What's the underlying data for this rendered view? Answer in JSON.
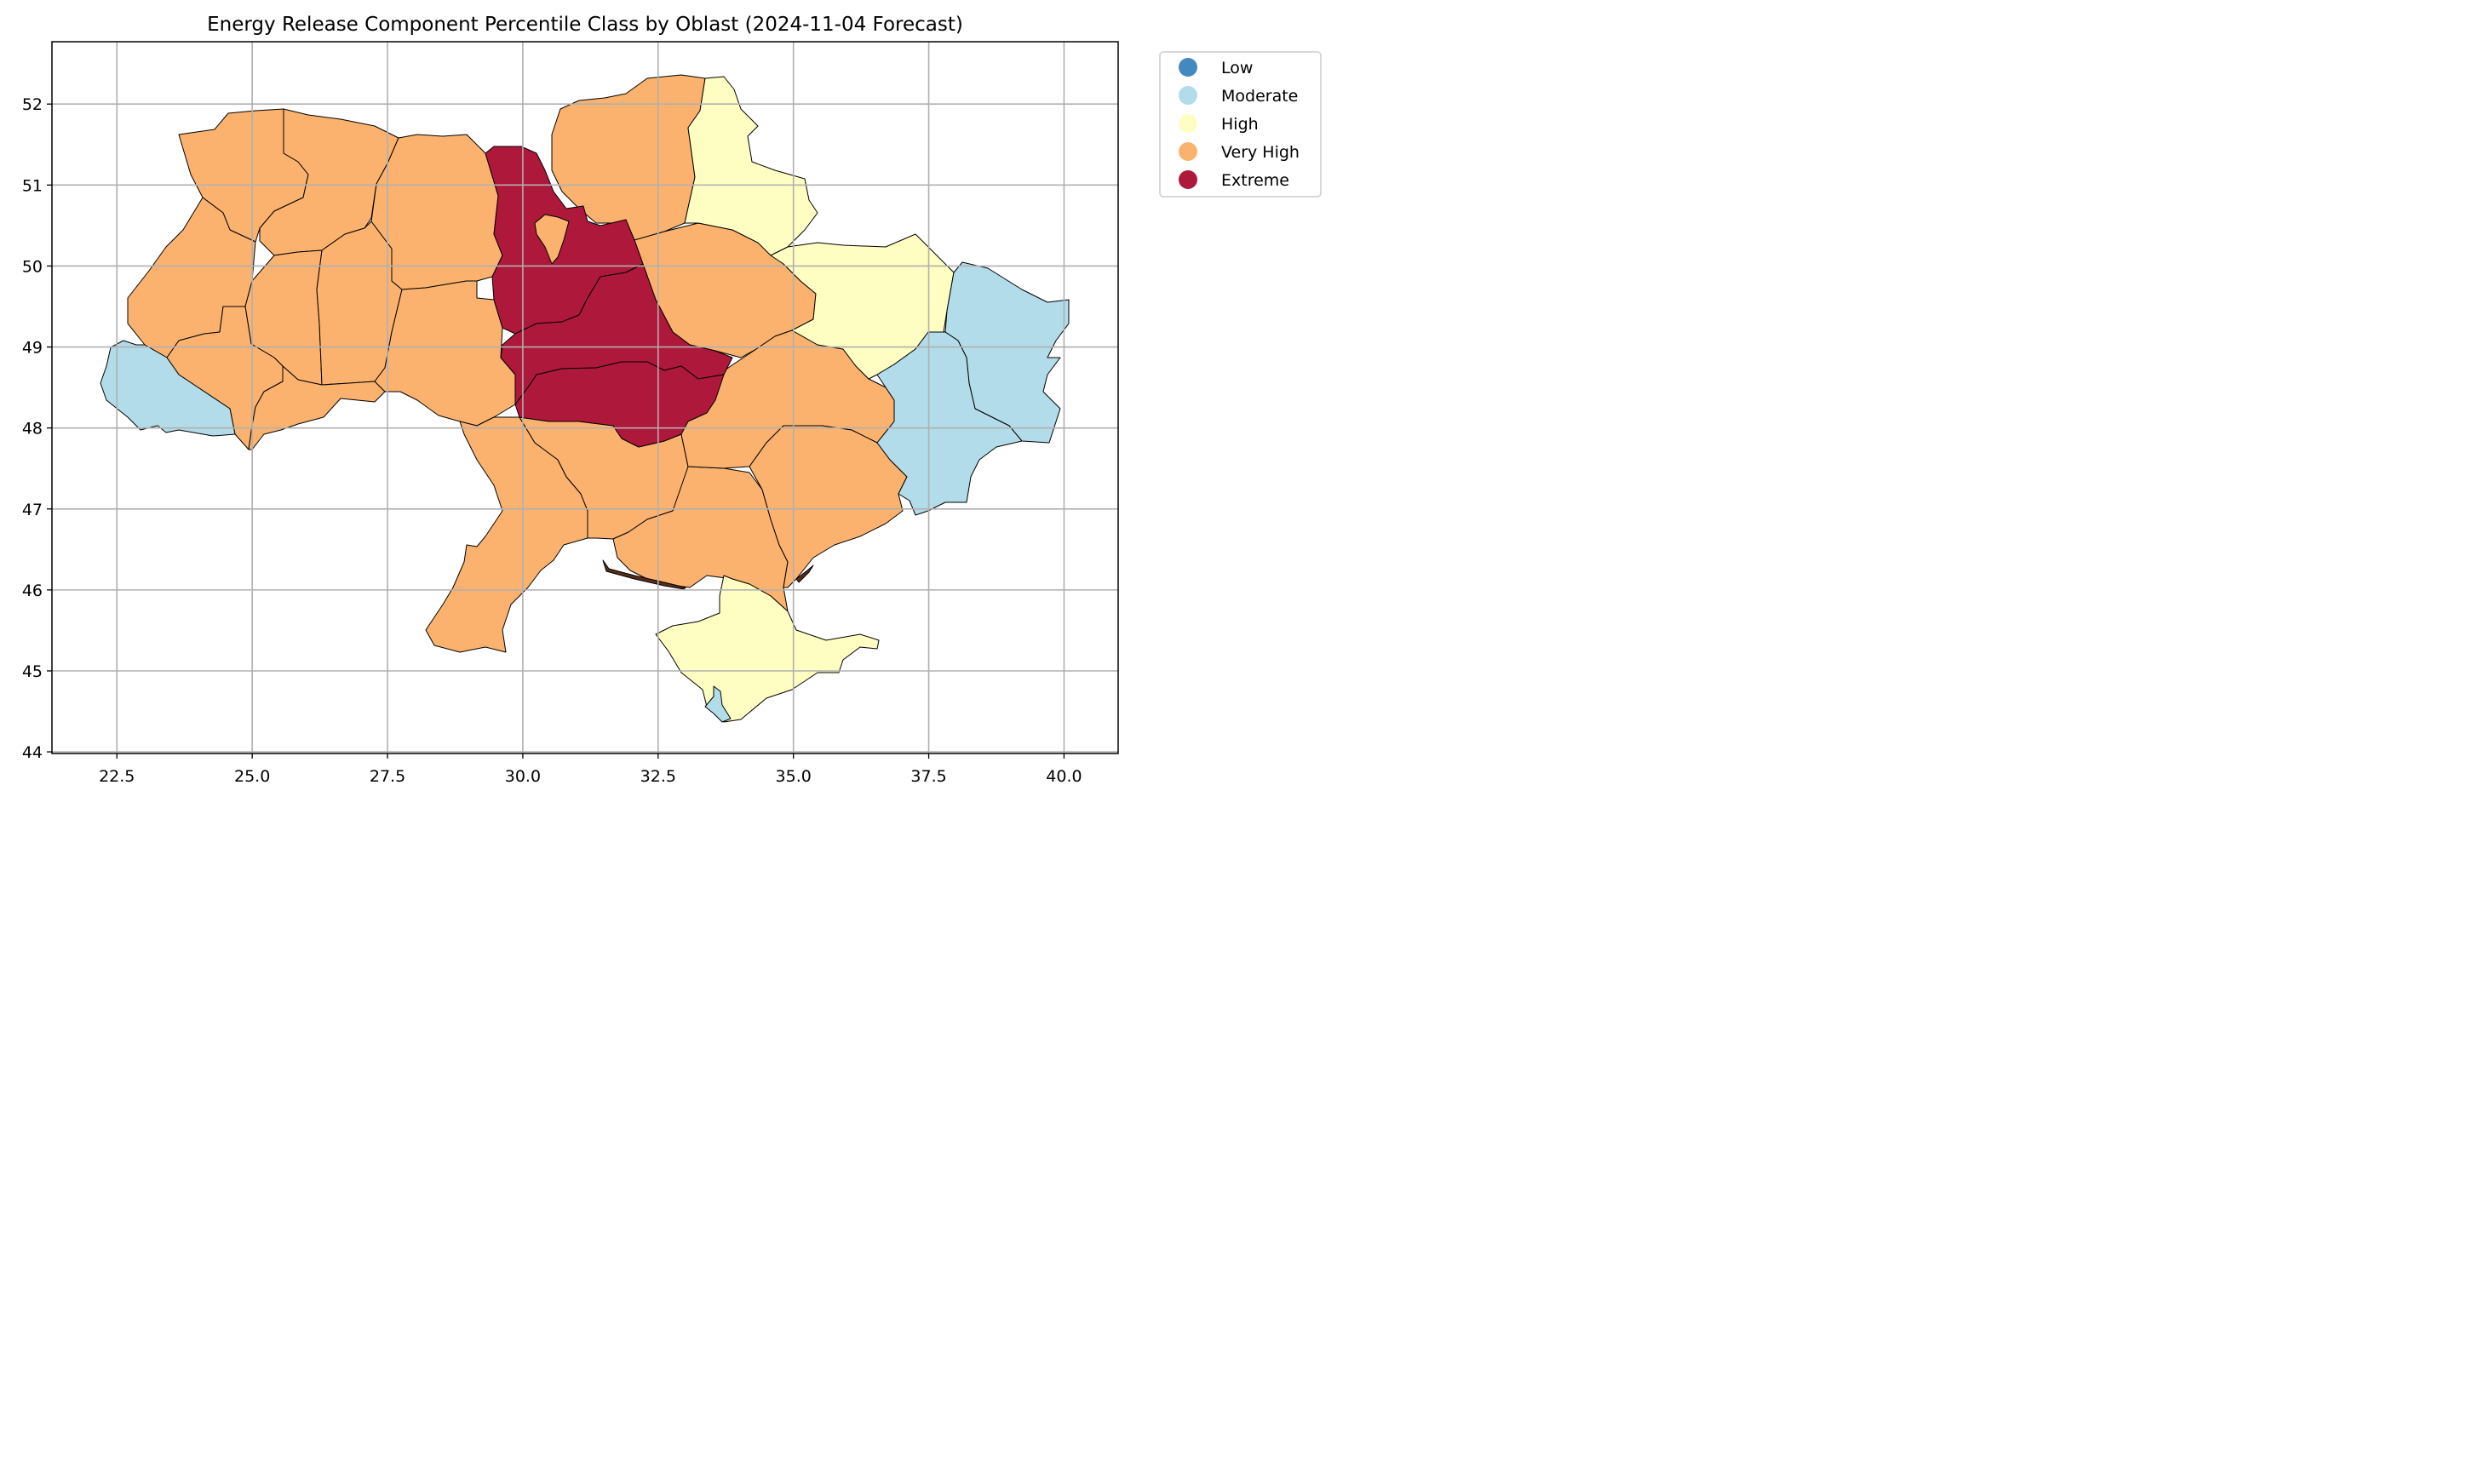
{
  "title": "Energy Release Component Percentile Class by Oblast (2024-11-04 Forecast)",
  "map_data": {
    "type": "choropleth",
    "x_ticks": [
      "22.5",
      "25.0",
      "27.5",
      "30.0",
      "32.5",
      "35.0",
      "37.5",
      "40.0"
    ],
    "y_ticks": [
      "44",
      "45",
      "46",
      "47",
      "48",
      "49",
      "50",
      "51",
      "52"
    ],
    "x_range": [
      21.3,
      41.0
    ],
    "y_range": [
      43.98,
      52.77
    ],
    "grid": true,
    "legend_position": "outside-top-right",
    "classes": [
      {
        "label": "Low",
        "color": "#4389c0"
      },
      {
        "label": "Moderate",
        "color": "#b2dce9"
      },
      {
        "label": "High",
        "color": "#fffec2"
      },
      {
        "label": "Very High",
        "color": "#fbb26f"
      },
      {
        "label": "Extreme",
        "color": "#ae183b"
      }
    ]
  }
}
